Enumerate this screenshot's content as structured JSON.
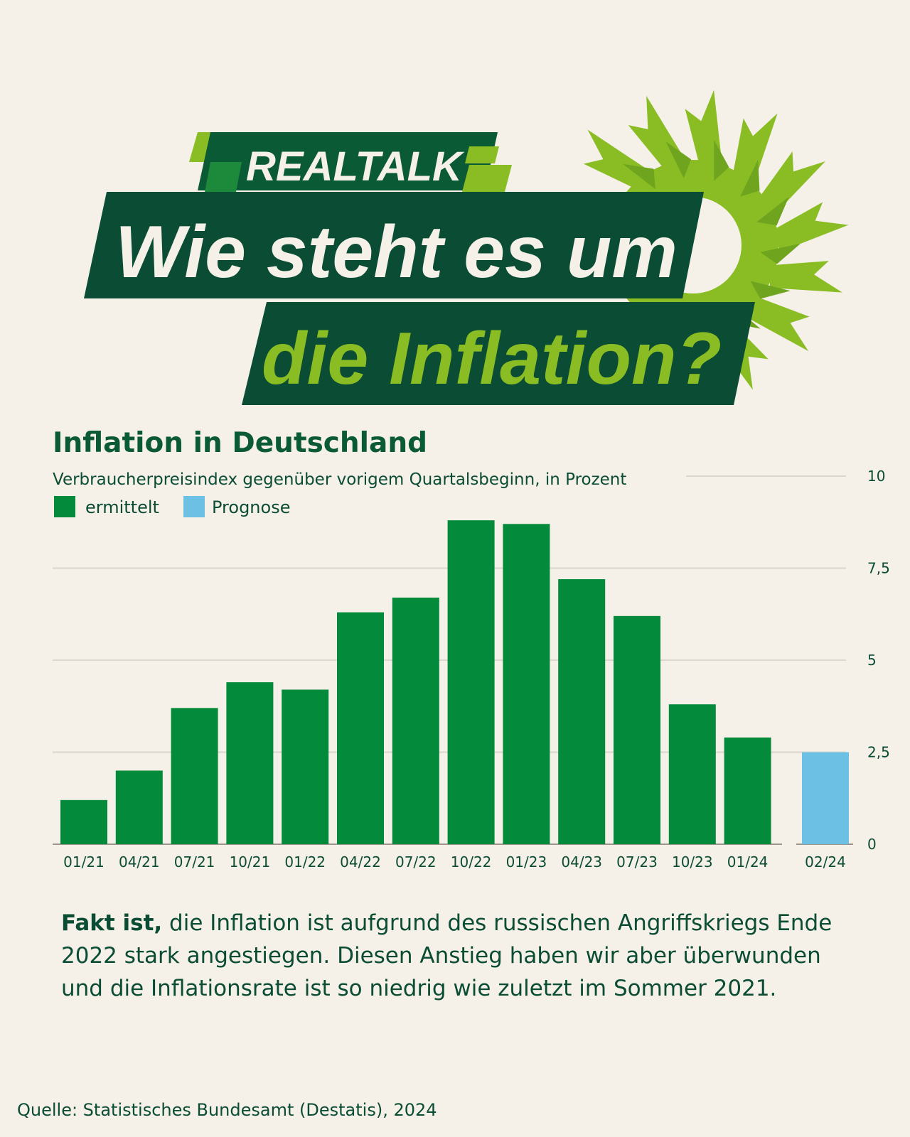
{
  "header": {
    "kicker": "REALTALK",
    "line1": "Wie steht es um",
    "line2": "die Inflation?"
  },
  "colors": {
    "background": "#f5f0e8",
    "dark_green": "#0b4d34",
    "bright_green": "#8abd24",
    "bar_measured": "#038a3a",
    "bar_forecast": "#6cc0e4"
  },
  "icons": [
    "sunflower-icon"
  ],
  "chart_data": {
    "type": "bar",
    "title": "Inflation in Deutschland",
    "subtitle": "Verbraucherpreisindex gegenüber vorigem Quartalsbeginn, in Prozent",
    "legend": [
      {
        "label": "ermittelt",
        "color": "#038a3a"
      },
      {
        "label": "Prognose",
        "color": "#6cc0e4"
      }
    ],
    "legend_position": "top-left",
    "y_axis_position": "right",
    "grid": true,
    "ylim": [
      0,
      10
    ],
    "y_ticks": [
      "0",
      "2,5",
      "5",
      "7,5",
      "10"
    ],
    "y_tick_values": [
      0,
      2.5,
      5,
      7.5,
      10
    ],
    "categories": [
      "01/21",
      "04/21",
      "07/21",
      "10/21",
      "01/22",
      "04/22",
      "07/22",
      "10/22",
      "01/23",
      "04/23",
      "07/23",
      "10/23",
      "01/24",
      "02/24"
    ],
    "series": [
      {
        "name": "ermittelt",
        "values": [
          1.2,
          2.0,
          3.7,
          4.4,
          4.2,
          6.3,
          6.7,
          8.8,
          8.7,
          7.2,
          6.2,
          3.8,
          2.9,
          null
        ]
      },
      {
        "name": "Prognose",
        "values": [
          null,
          null,
          null,
          null,
          null,
          null,
          null,
          null,
          null,
          null,
          null,
          null,
          null,
          2.5
        ]
      }
    ]
  },
  "fact": {
    "lead": "Fakt ist,",
    "text": " die Inflation ist aufgrund des russischen Angriffskriegs Ende 2022 stark angestiegen. Diesen Anstieg haben wir aber überwunden und die Inflationsrate ist so niedrig wie zuletzt im Sommer 2021."
  },
  "source": "Quelle: Statistisches Bundesamt (Destatis), 2024"
}
